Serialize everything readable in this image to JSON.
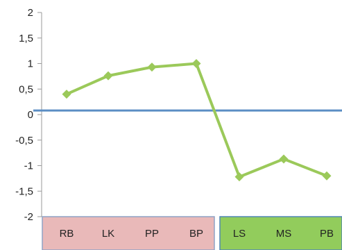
{
  "chart_data": {
    "type": "line",
    "title": "",
    "xlabel": "",
    "ylabel": "",
    "ylim": [
      -2,
      2
    ],
    "ytick_labels": [
      "2",
      "1,5",
      "1",
      "0,5",
      "0",
      "-0,5",
      "-1",
      "-1,5",
      "-2"
    ],
    "ytick_values": [
      2,
      1.5,
      1,
      0.5,
      0,
      -0.5,
      -1,
      -1.5,
      -2
    ],
    "grid": false,
    "legend": "none",
    "categories": [
      "RB",
      "LK",
      "PP",
      "BP",
      "LS",
      "MS",
      "PB"
    ],
    "series": [
      {
        "color": "#9bc95a",
        "marker": "diamond",
        "values": [
          0.4,
          0.76,
          0.93,
          1.0,
          -1.22,
          -0.87,
          -1.2
        ]
      }
    ],
    "reference_line": {
      "value": 0.08,
      "color": "#5b8ec4"
    },
    "category_groups": [
      {
        "members": [
          "RB",
          "LK",
          "PP",
          "BP"
        ],
        "fill": "#e9b9b9",
        "border": "#8fa3c6"
      },
      {
        "members": [
          "LS",
          "MS",
          "PB"
        ],
        "fill": "#92cc5c",
        "border": "#4f86b6"
      }
    ]
  }
}
